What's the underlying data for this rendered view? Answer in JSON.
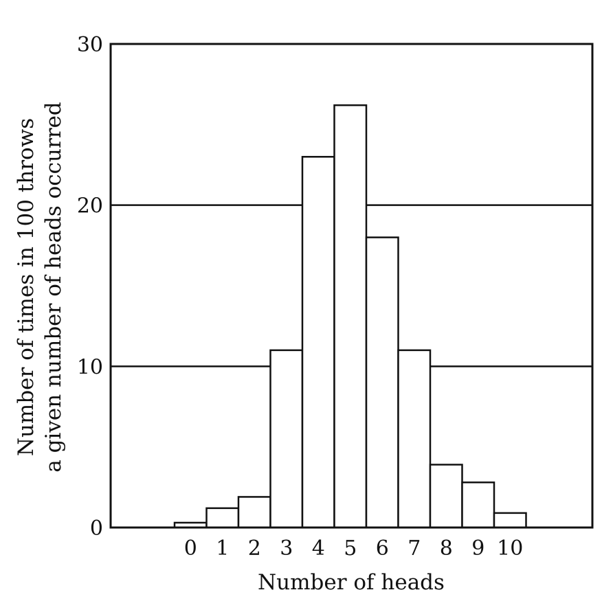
{
  "chart_data": {
    "type": "bar",
    "xlabel": "Number of heads",
    "ylabel_lines": [
      "Number of times in 100 throws",
      "a given number of heads occurred"
    ],
    "ylim": [
      0,
      30
    ],
    "yticks": [
      0,
      10,
      20,
      30
    ],
    "grid": "horizontal lines at 10 and 20",
    "categories": [
      "0",
      "1",
      "2",
      "3",
      "4",
      "5",
      "6",
      "7",
      "8",
      "9",
      "10"
    ],
    "values": [
      0.3,
      1.2,
      1.9,
      11,
      23,
      26.2,
      18,
      11,
      3.9,
      2.8,
      0.9
    ],
    "colors": {
      "bar_fill": "#ffffff",
      "stroke": "#111111"
    }
  }
}
